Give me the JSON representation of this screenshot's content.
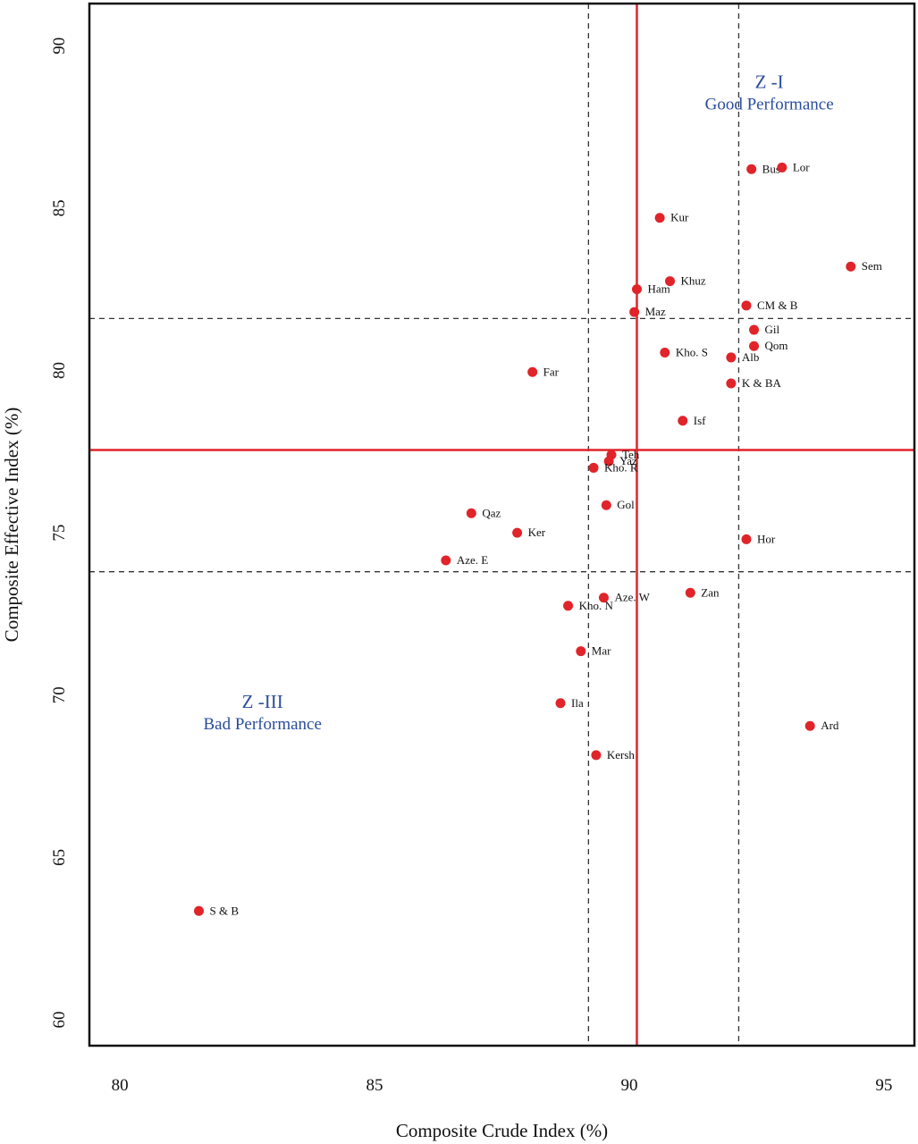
{
  "chart_data": {
    "type": "scatter",
    "xlabel": "Composite Crude Index (%)",
    "ylabel": "Composite Effective Index (%)",
    "xlim": [
      79.4,
      95.6
    ],
    "ylim": [
      59.2,
      91.3
    ],
    "xticks": [
      80,
      85,
      90,
      95
    ],
    "yticks": [
      60,
      65,
      70,
      75,
      80,
      85,
      90
    ],
    "grid": false,
    "reference_lines": {
      "mean_x": 90.15,
      "mean_y": 77.55,
      "lower_x": 89.2,
      "upper_x": 92.15,
      "lower_y": 73.8,
      "upper_y": 81.6,
      "mean_color": "#e0242a",
      "bound_color": "#333333"
    },
    "zones": [
      {
        "title": "Z -I",
        "subtitle": "Good Performance",
        "x": 92.75,
        "y": 88.7,
        "color": "#2a4d9c"
      },
      {
        "title": "Z -III",
        "subtitle": "Bad Performance",
        "x": 82.8,
        "y": 69.6,
        "color": "#2a4d9c"
      }
    ],
    "marker_color": "#e0242a",
    "points": [
      {
        "label": "Bus",
        "x": 92.4,
        "y": 86.2
      },
      {
        "label": "Lor",
        "x": 93.0,
        "y": 86.25
      },
      {
        "label": "Kur",
        "x": 90.6,
        "y": 84.7
      },
      {
        "label": "Sem",
        "x": 94.35,
        "y": 83.2
      },
      {
        "label": "Khuz",
        "x": 90.8,
        "y": 82.75
      },
      {
        "label": "Ham",
        "x": 90.15,
        "y": 82.5
      },
      {
        "label": "CM & B",
        "x": 92.3,
        "y": 82.0
      },
      {
        "label": "Maz",
        "x": 90.1,
        "y": 81.8
      },
      {
        "label": "Gil",
        "x": 92.45,
        "y": 81.25
      },
      {
        "label": "Qom",
        "x": 92.45,
        "y": 80.75
      },
      {
        "label": "Kho. S",
        "x": 90.7,
        "y": 80.55
      },
      {
        "label": "Alb",
        "x": 92.0,
        "y": 80.4
      },
      {
        "label": "Far",
        "x": 88.1,
        "y": 79.95
      },
      {
        "label": "K & BA",
        "x": 92.0,
        "y": 79.6
      },
      {
        "label": "Isf",
        "x": 91.05,
        "y": 78.45
      },
      {
        "label": "Teh",
        "x": 89.65,
        "y": 77.4
      },
      {
        "label": "Yaz",
        "x": 89.6,
        "y": 77.2
      },
      {
        "label": "Kho. R",
        "x": 89.3,
        "y": 77.0
      },
      {
        "label": "Gol",
        "x": 89.55,
        "y": 75.85
      },
      {
        "label": "Qaz",
        "x": 86.9,
        "y": 75.6
      },
      {
        "label": "Ker",
        "x": 87.8,
        "y": 75.0
      },
      {
        "label": "Hor",
        "x": 92.3,
        "y": 74.8
      },
      {
        "label": "Aze. E",
        "x": 86.4,
        "y": 74.15
      },
      {
        "label": "Zan",
        "x": 91.2,
        "y": 73.15
      },
      {
        "label": "Aze. W",
        "x": 89.5,
        "y": 73.0
      },
      {
        "label": "Kho. N",
        "x": 88.8,
        "y": 72.75
      },
      {
        "label": "Mar",
        "x": 89.05,
        "y": 71.35
      },
      {
        "label": "Ila",
        "x": 88.65,
        "y": 69.75
      },
      {
        "label": "Ard",
        "x": 93.55,
        "y": 69.05
      },
      {
        "label": "Kersh",
        "x": 89.35,
        "y": 68.15
      },
      {
        "label": "S & B",
        "x": 81.55,
        "y": 63.35
      }
    ]
  }
}
